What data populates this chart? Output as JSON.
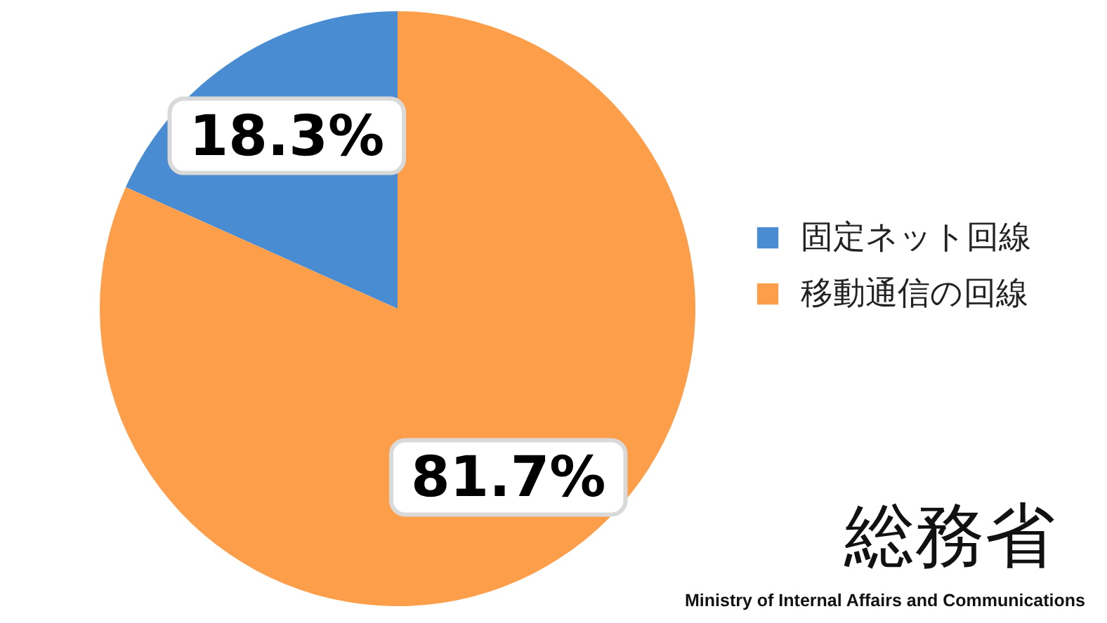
{
  "chart_data": {
    "type": "pie",
    "categories": [
      "固定ネット回線",
      "移動通信の回線"
    ],
    "values": [
      18.3,
      81.7
    ],
    "colors": [
      "#4a8cd2",
      "#fd9e4a"
    ],
    "value_labels": [
      "18.3%",
      "81.7%"
    ],
    "legend": "right",
    "annotations": [
      "総務省",
      "Ministry of Internal Affairs and Communications"
    ]
  }
}
